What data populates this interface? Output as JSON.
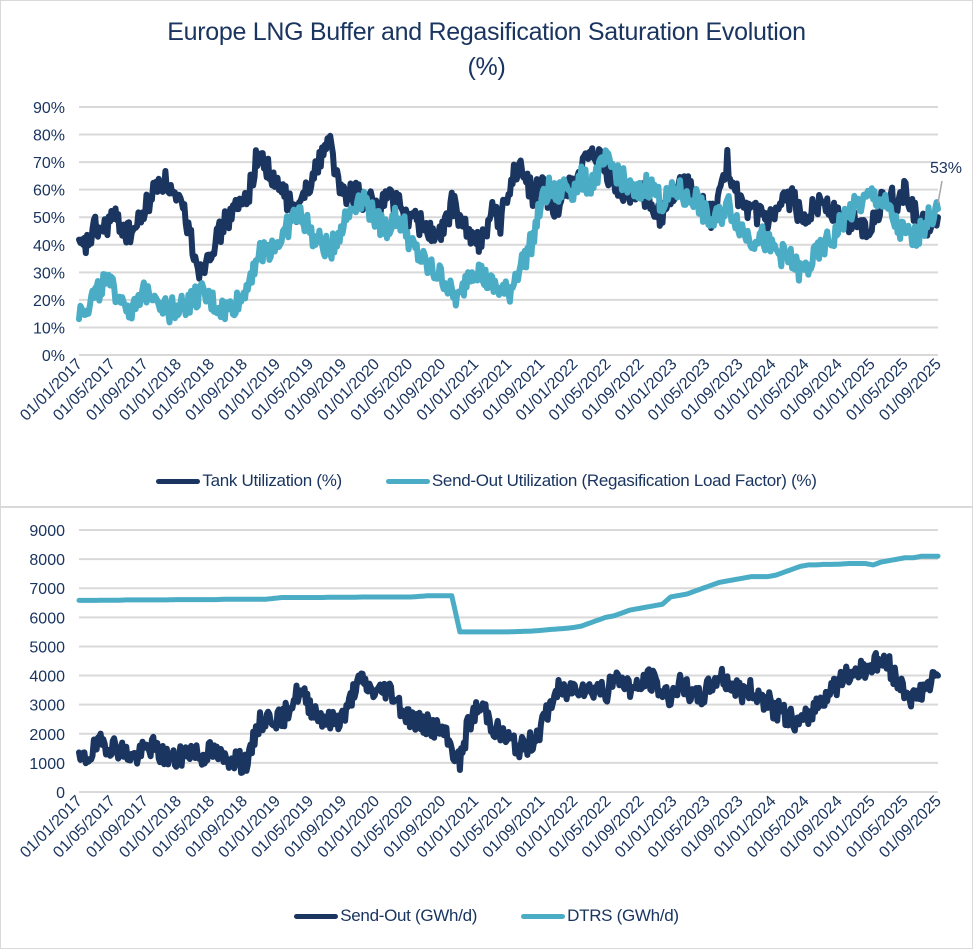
{
  "colors": {
    "navy": "#1a3560",
    "teal": "#4bacc6",
    "grid": "#d9d9d9",
    "text": "#1a3560"
  },
  "chart_data": [
    {
      "type": "line",
      "title": "Europe LNG Buffer and Regasification Saturation Evolution",
      "subtitle": "(%)",
      "xlabel": "",
      "ylabel": "",
      "ylim": [
        0,
        90
      ],
      "yticks": [
        "0%",
        "10%",
        "20%",
        "30%",
        "40%",
        "50%",
        "60%",
        "70%",
        "80%",
        "90%"
      ],
      "grid": true,
      "legend_position": "bottom",
      "x_tick_labels": [
        "01/01/2017",
        "01/05/2017",
        "01/09/2017",
        "01/01/2018",
        "01/05/2018",
        "01/09/2018",
        "01/01/2019",
        "01/05/2019",
        "01/09/2019",
        "01/01/2020",
        "01/05/2020",
        "01/09/2020",
        "01/01/2021",
        "01/05/2021",
        "01/09/2021",
        "01/01/2022",
        "01/05/2022",
        "01/09/2022",
        "01/01/2023",
        "01/05/2023",
        "01/09/2023",
        "01/01/2024",
        "01/05/2024",
        "01/09/2024",
        "01/01/2025",
        "01/05/2025",
        "01/09/2025"
      ],
      "x_months": [
        0,
        2,
        4,
        6,
        8,
        10,
        12,
        14,
        16,
        18,
        20,
        22,
        24,
        26,
        28,
        30,
        32,
        34,
        36,
        38,
        40,
        42,
        44,
        46,
        48,
        50,
        52,
        54,
        56,
        58,
        60,
        62,
        64,
        66,
        68,
        70,
        72,
        74,
        76,
        78,
        80,
        82,
        84,
        86,
        88,
        90,
        92,
        94,
        96,
        98,
        100,
        102,
        104,
        106,
        108
      ],
      "annotation": {
        "text": "53%",
        "series": "Send-Out Utilization (Regasification Load Factor) (%)",
        "value": 53
      },
      "series": [
        {
          "name": "Tank Utilization (%)",
          "color": "#1a3560",
          "values": [
            38,
            40,
            46,
            45,
            50,
            48,
            44,
            46,
            52,
            58,
            64,
            62,
            55,
            52,
            40,
            30,
            38,
            42,
            48,
            52,
            54,
            60,
            72,
            70,
            62,
            60,
            55,
            50,
            62,
            65,
            74,
            78,
            62,
            56,
            60,
            56,
            55,
            54,
            58,
            56,
            52,
            50,
            48,
            46,
            42,
            45,
            55,
            50,
            44,
            40,
            45,
            52,
            48,
            60,
            68,
            65,
            58,
            62,
            56,
            50,
            62,
            62,
            68,
            70,
            72,
            66,
            62,
            58,
            58,
            62,
            56,
            50,
            52,
            56,
            60,
            62,
            58,
            54,
            50,
            56,
            70,
            60,
            52,
            50,
            52,
            48,
            50,
            55,
            58,
            50,
            52,
            55,
            56,
            52,
            50,
            48,
            50,
            45,
            50,
            55,
            58,
            55,
            60,
            52,
            48,
            45,
            50
          ]
        },
        {
          "name": "Send-Out Utilization (Regasification Load Factor) (%)",
          "color": "#4bacc6",
          "values": [
            16,
            18,
            22,
            26,
            24,
            22,
            18,
            16,
            22,
            24,
            20,
            16,
            18,
            18,
            20,
            22,
            20,
            18,
            16,
            18,
            20,
            28,
            36,
            38,
            40,
            42,
            48,
            52,
            48,
            42,
            40,
            38,
            44,
            50,
            55,
            58,
            52,
            48,
            46,
            50,
            48,
            40,
            36,
            32,
            30,
            28,
            22,
            20,
            30,
            32,
            28,
            25,
            24,
            22,
            30,
            35,
            42,
            55,
            60,
            58,
            62,
            60,
            64,
            62,
            66,
            70,
            68,
            64,
            60,
            58,
            62,
            60,
            55,
            58,
            60,
            56,
            58,
            52,
            48,
            50,
            55,
            50,
            45,
            42,
            44,
            40,
            38,
            36,
            34,
            30,
            32,
            36,
            40,
            42,
            48,
            52,
            54,
            56,
            58,
            56,
            52,
            46,
            44,
            42,
            46,
            50,
            53
          ]
        }
      ]
    },
    {
      "type": "line",
      "title": "",
      "xlabel": "",
      "ylabel": "",
      "ylim": [
        0,
        9000
      ],
      "yticks": [
        "0",
        "1000",
        "2000",
        "3000",
        "4000",
        "5000",
        "6000",
        "7000",
        "8000",
        "9000"
      ],
      "grid": true,
      "legend_position": "bottom",
      "x_tick_labels": [
        "01/01/2017",
        "01/05/2017",
        "01/09/2017",
        "01/01/2018",
        "01/05/2018",
        "01/09/2018",
        "01/01/2019",
        "01/05/2019",
        "01/09/2019",
        "01/01/2020",
        "01/05/2020",
        "01/09/2020",
        "01/01/2021",
        "01/05/2021",
        "01/09/2021",
        "01/01/2022",
        "01/05/2022",
        "01/09/2022",
        "01/01/2023",
        "01/05/2023",
        "01/09/2023",
        "01/01/2024",
        "01/05/2024",
        "01/09/2024",
        "01/01/2025",
        "01/05/2025",
        "01/09/2025"
      ],
      "series": [
        {
          "name": "Send-Out (GWh/d)",
          "color": "#1a3560",
          "values": [
            1000,
            1200,
            1500,
            1700,
            1600,
            1500,
            1300,
            1200,
            1400,
            1600,
            1300,
            1200,
            1100,
            1300,
            1500,
            1200,
            1400,
            1300,
            1100,
            1200,
            1000,
            1100,
            2300,
            2500,
            2600,
            2400,
            3000,
            3400,
            3200,
            2800,
            2600,
            2400,
            2500,
            2700,
            3600,
            3800,
            3500,
            3400,
            3600,
            3300,
            2800,
            2500,
            2400,
            2300,
            2200,
            2000,
            1500,
            1000,
            2300,
            2800,
            2900,
            2300,
            2000,
            1800,
            1600,
            1500,
            1800,
            2200,
            2900,
            3500,
            3400,
            3600,
            3700,
            3500,
            3600,
            3400,
            3800,
            3900,
            3600,
            3500,
            3900,
            3800,
            3400,
            3300,
            3700,
            3500,
            3200,
            3300,
            3700,
            4000,
            3800,
            3600,
            3400,
            3500,
            3300,
            3100,
            2800,
            2700,
            2500,
            2300,
            2600,
            3000,
            3300,
            3600,
            3800,
            4000,
            4200,
            4300,
            4400,
            4500,
            4300,
            3800,
            3500,
            3200,
            3500,
            3700,
            4000
          ]
        },
        {
          "name": "DTRS (GWh/d)",
          "color": "#4bacc6",
          "values": [
            6580,
            6580,
            6580,
            6590,
            6590,
            6590,
            6600,
            6600,
            6600,
            6600,
            6600,
            6600,
            6610,
            6610,
            6610,
            6610,
            6610,
            6610,
            6620,
            6620,
            6620,
            6620,
            6620,
            6620,
            6650,
            6680,
            6680,
            6680,
            6680,
            6680,
            6680,
            6690,
            6690,
            6690,
            6690,
            6700,
            6700,
            6700,
            6700,
            6700,
            6700,
            6700,
            6720,
            6740,
            6740,
            6740,
            6740,
            5500,
            5500,
            5500,
            5500,
            5500,
            5500,
            5500,
            5510,
            5520,
            5530,
            5550,
            5580,
            5600,
            5620,
            5650,
            5700,
            5800,
            5900,
            6000,
            6050,
            6150,
            6250,
            6300,
            6350,
            6400,
            6450,
            6700,
            6750,
            6800,
            6900,
            7000,
            7100,
            7200,
            7250,
            7300,
            7350,
            7400,
            7400,
            7400,
            7450,
            7550,
            7650,
            7750,
            7800,
            7800,
            7820,
            7820,
            7830,
            7850,
            7850,
            7850,
            7800,
            7900,
            7950,
            8000,
            8050,
            8050,
            8100,
            8100,
            8100
          ]
        }
      ]
    }
  ],
  "legend_top": {
    "items": [
      "Tank Utilization (%)",
      "Send-Out Utilization (Regasification Load Factor) (%)"
    ]
  },
  "legend_bottom": {
    "items": [
      "Send-Out (GWh/d)",
      "DTRS (GWh/d)"
    ]
  },
  "title": {
    "line1": "Europe LNG Buffer and Regasification Saturation Evolution",
    "line2": "(%)"
  }
}
